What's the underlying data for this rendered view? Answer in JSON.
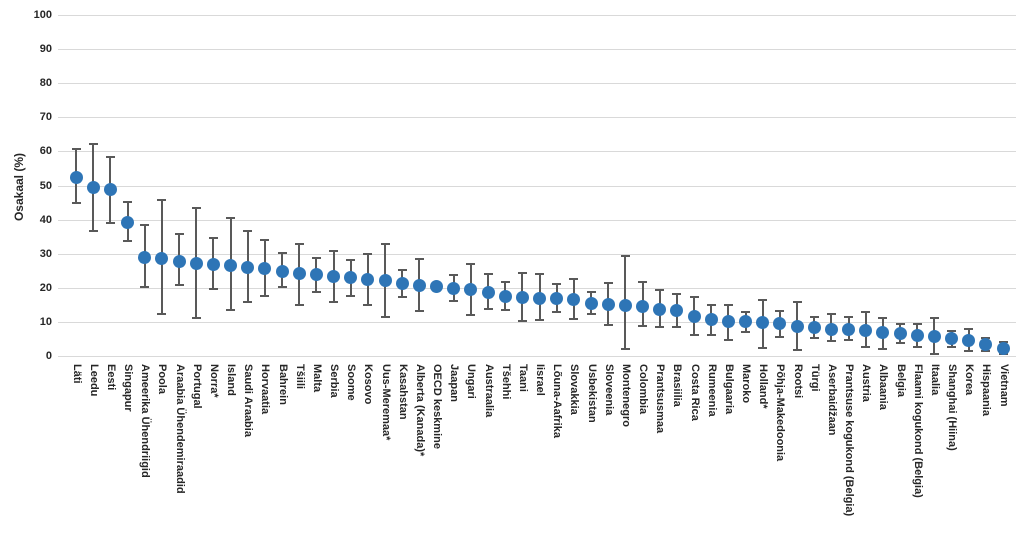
{
  "colors": {
    "marker": "#2e75b6",
    "error_bar": "#595959",
    "gridline": "#d9d9d9",
    "axis_text": "#262626",
    "background": "#ffffff"
  },
  "chart_data": {
    "type": "scatter",
    "title": "",
    "xlabel": "",
    "ylabel": "Osakaal (%)",
    "ylim": [
      0,
      100
    ],
    "yticks": [
      0,
      10,
      20,
      30,
      40,
      50,
      60,
      70,
      80,
      90,
      100
    ],
    "grid": true,
    "legend_position": "none",
    "marker_style": "filled-circle with vertical error bars (capped whiskers)",
    "categories": [
      "Läti",
      "Leedu",
      "Eesti",
      "Singapur",
      "Ameerika Ühendriigid",
      "Poola",
      "Araabia Ühendemiraadid",
      "Portugal",
      "Norra*",
      "Island",
      "Saudi Araabia",
      "Horvaatia",
      "Bahrein",
      "Tšiili",
      "Malta",
      "Serbia",
      "Soome",
      "Kosovo",
      "Uus-Meremaa*",
      "Kasahstan",
      "Alberta (Kanada)*",
      "OECD keskmine",
      "Jaapan",
      "Ungari",
      "Austraalia",
      "Tšehhi",
      "Taani",
      "Iisrael",
      "Lõuna-Aafrika",
      "Slovakkia",
      "Usbekistan",
      "Sloveenia",
      "Montenegro",
      "Colombia",
      "Prantsusmaa",
      "Brasiilia",
      "Costa Rica",
      "Rumeenia",
      "Bulgaaria",
      "Maroko",
      "Holland*",
      "Põhja-Makedoonia",
      "Rootsi",
      "Türgi",
      "Aserbaidžaan",
      "Prantsuse kogukond (Belgia)",
      "Austria",
      "Albaania",
      "Belgia",
      "Flaami kogukond (Belgia)",
      "Itaalia",
      "Shanghai (Hiina)",
      "Korea",
      "Hispaania",
      "Vietnam"
    ],
    "series": [
      {
        "name": "Osakaal (%)",
        "values": [
          52.5,
          49.5,
          48.7,
          39.2,
          29.0,
          28.7,
          27.8,
          27.0,
          26.8,
          26.7,
          26.1,
          25.7,
          24.8,
          24.2,
          23.8,
          23.3,
          22.9,
          22.4,
          22.1,
          21.3,
          20.7,
          20.3,
          19.8,
          19.5,
          18.6,
          17.5,
          17.2,
          17.0,
          16.9,
          16.6,
          15.4,
          15.0,
          14.7,
          14.6,
          13.6,
          13.4,
          11.6,
          10.8,
          10.1,
          10.0,
          9.7,
          9.4,
          8.8,
          8.3,
          7.9,
          7.8,
          7.6,
          7.0,
          6.6,
          6.1,
          5.6,
          5.1,
          4.5,
          3.5,
          2.3
        ],
        "ci_low": [
          45.0,
          36.8,
          38.9,
          33.6,
          20.3,
          12.3,
          20.8,
          11.1,
          19.6,
          13.6,
          15.9,
          17.6,
          20.3,
          15.0,
          18.9,
          15.8,
          17.5,
          15.0,
          11.4,
          17.3,
          13.2,
          20.3,
          16.0,
          12.0,
          13.9,
          13.6,
          10.3,
          10.5,
          12.9,
          11.0,
          12.4,
          9.0,
          2.1,
          8.7,
          8.4,
          8.4,
          6.2,
          6.2,
          4.8,
          7.0,
          2.5,
          5.6,
          1.8,
          5.3,
          4.3,
          4.7,
          2.8,
          2.0,
          3.9,
          2.8,
          0.5,
          2.6,
          1.6,
          1.6,
          0.7
        ],
        "ci_high": [
          60.8,
          62.2,
          58.4,
          45.2,
          38.4,
          45.9,
          35.8,
          43.3,
          34.5,
          40.4,
          36.7,
          34.0,
          30.2,
          33.0,
          28.9,
          30.9,
          28.2,
          29.8,
          32.8,
          25.2,
          28.4,
          20.3,
          23.8,
          27.0,
          24.1,
          21.7,
          24.5,
          24.1,
          21.2,
          22.6,
          18.9,
          21.3,
          29.4,
          21.6,
          19.4,
          18.3,
          17.2,
          15.1,
          14.9,
          13.0,
          16.5,
          13.3,
          15.8,
          11.4,
          12.4,
          11.4,
          13.0,
          11.3,
          9.5,
          9.5,
          11.2,
          7.4,
          7.8,
          5.3,
          4.0
        ]
      }
    ]
  }
}
